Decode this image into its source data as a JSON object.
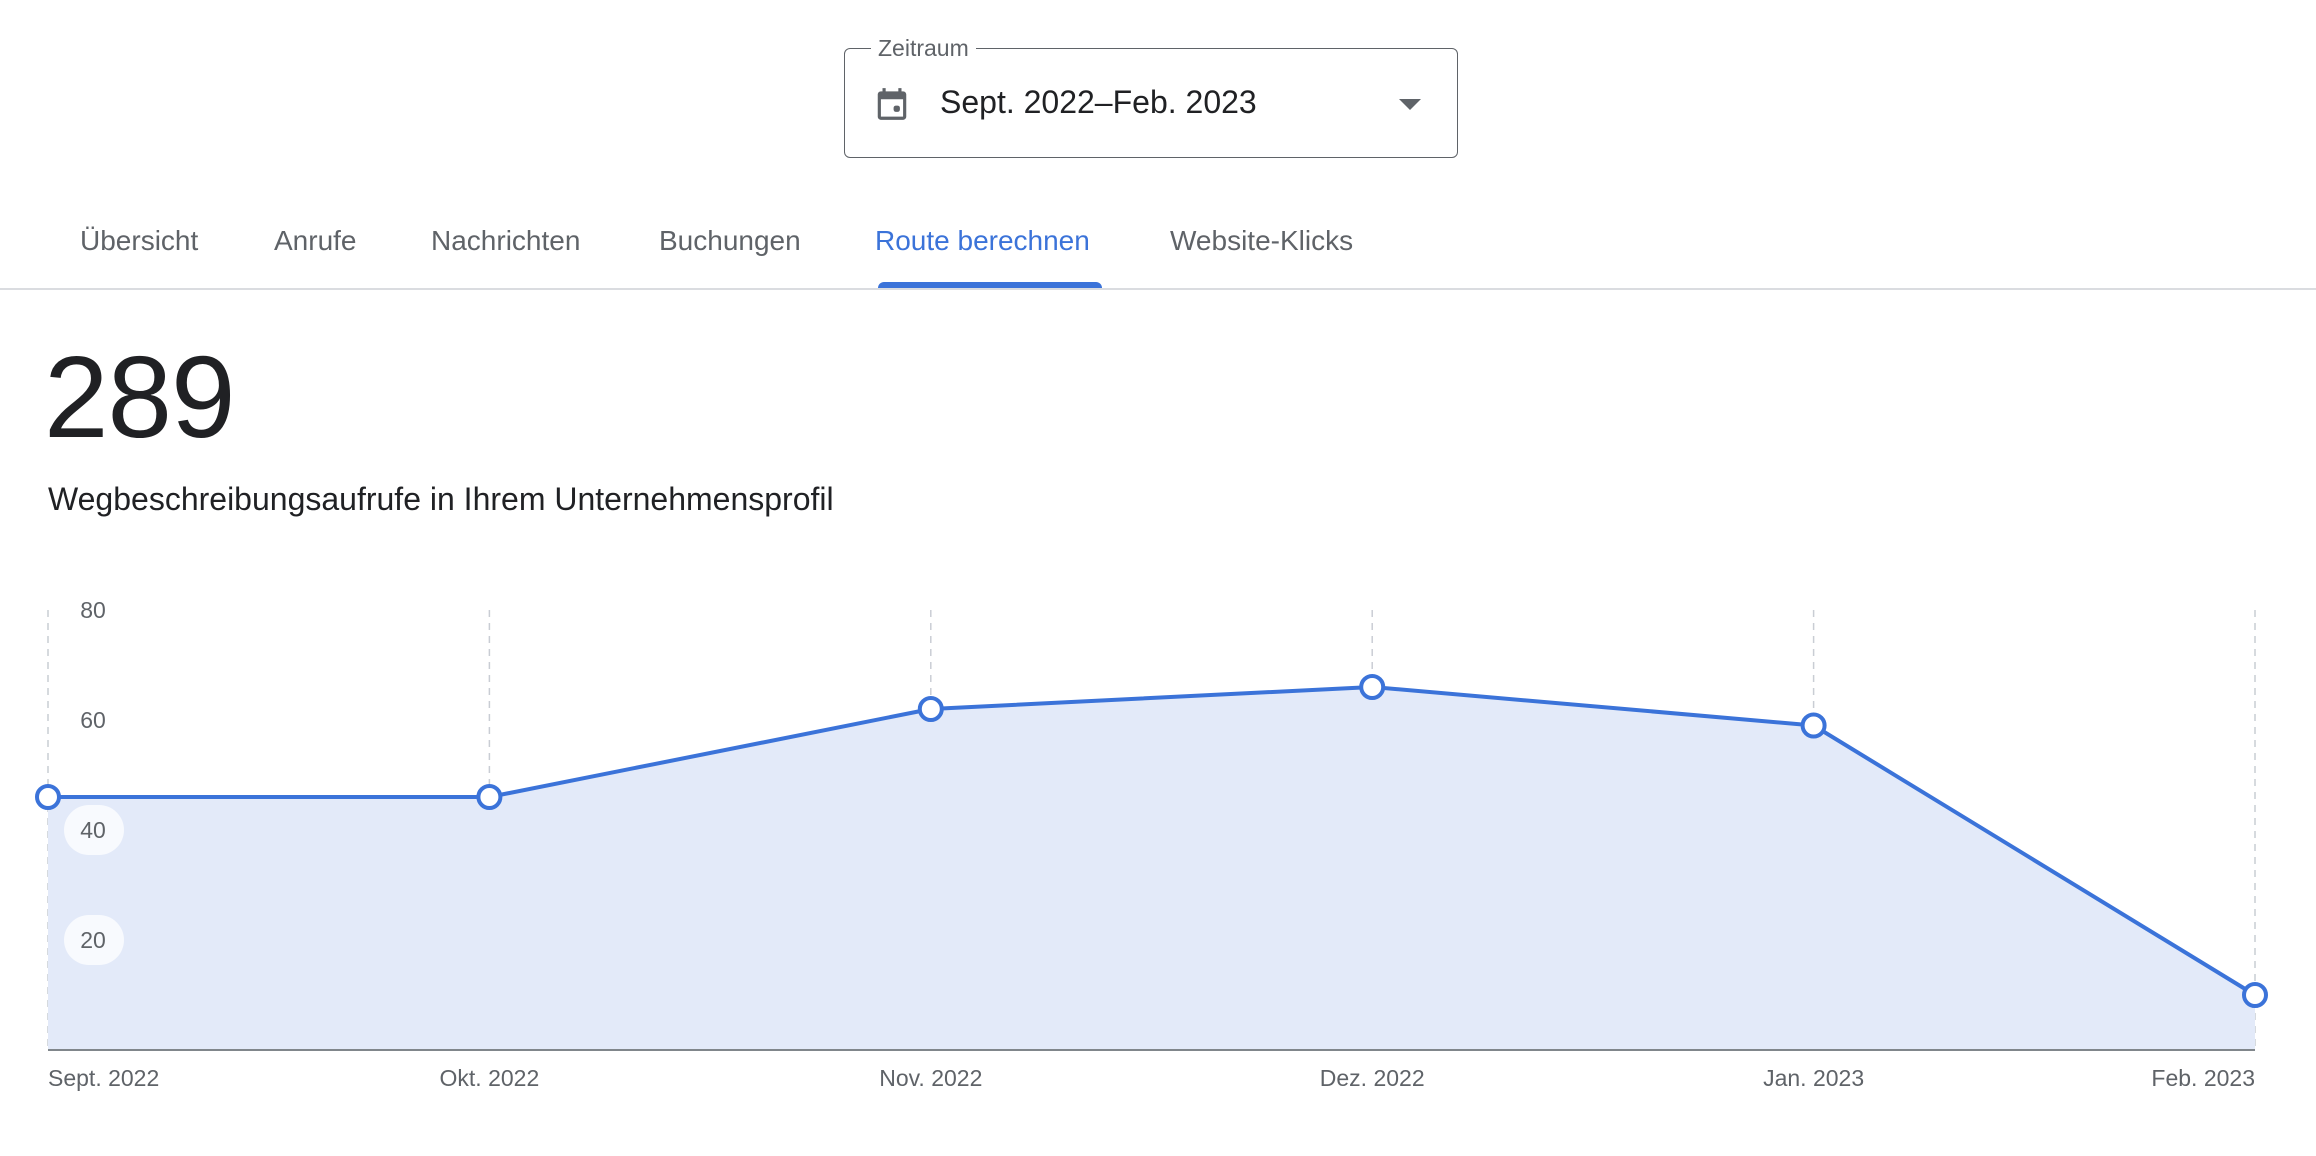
{
  "period": {
    "legend": "Zeitraum",
    "value": "Sept. 2022–Feb. 2023",
    "icon": "calendar-icon"
  },
  "tabs": [
    {
      "label": "Übersicht",
      "active": false
    },
    {
      "label": "Anrufe",
      "active": false
    },
    {
      "label": "Nachrichten",
      "active": false
    },
    {
      "label": "Buchungen",
      "active": false
    },
    {
      "label": "Route berechnen",
      "active": true
    },
    {
      "label": "Website-Klicks",
      "active": false
    }
  ],
  "metric": {
    "value": "289",
    "label": "Wegbeschreibungsaufrufe in Ihrem Unternehmensprofil"
  },
  "colors": {
    "accent": "#3b73d9",
    "area_fill": "#e3eaf9"
  },
  "chart_data": {
    "type": "area",
    "categories": [
      "Sept. 2022",
      "Okt. 2022",
      "Nov. 2022",
      "Dez. 2022",
      "Jan. 2023",
      "Feb. 2023"
    ],
    "series": [
      {
        "values": [
          46,
          46,
          62,
          66,
          59,
          10
        ]
      }
    ],
    "yticks": [
      80,
      60,
      40,
      20
    ],
    "ylim": [
      0,
      80
    ],
    "grid": "vertical dashed",
    "markers": "hollow circles"
  }
}
